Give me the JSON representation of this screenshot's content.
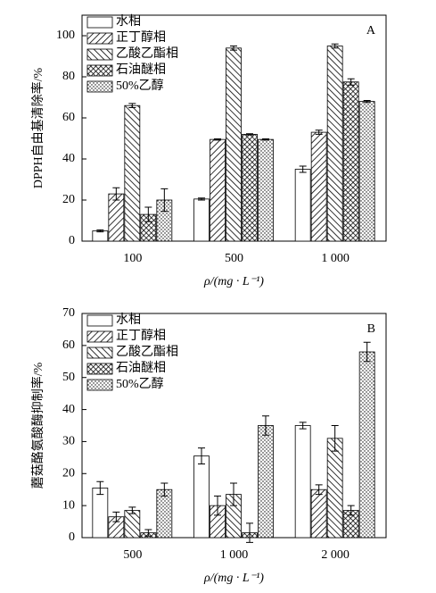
{
  "chart_data": [
    {
      "type": "bar",
      "annotation": "A",
      "ylabel": "DPPH自由基清除率/%",
      "xlabel": "ρ/(mg · L⁻¹)",
      "categories": [
        "100",
        "500",
        "1 000"
      ],
      "ylim": [
        0,
        110
      ],
      "yticks": [
        0,
        20,
        40,
        60,
        80,
        100
      ],
      "legend": "top-left",
      "series": [
        {
          "name": "水相",
          "color": "#ffffff",
          "pattern": "none",
          "values": [
            5,
            20.5,
            35
          ],
          "errors": [
            0.5,
            0.5,
            1.5
          ]
        },
        {
          "name": "正丁醇相",
          "color": "#ffffff",
          "pattern": "forward-hatch",
          "values": [
            23,
            49.5,
            53
          ],
          "errors": [
            3,
            0.3,
            1
          ]
        },
        {
          "name": "乙酸乙酯相",
          "color": "#ffffff",
          "pattern": "back-hatch",
          "values": [
            66,
            94,
            95
          ],
          "errors": [
            1,
            1,
            1
          ]
        },
        {
          "name": "石油醚相",
          "color": "#ffffff",
          "pattern": "cross-hatch",
          "values": [
            13,
            52,
            77.5
          ],
          "errors": [
            3.5,
            0.3,
            1.5
          ]
        },
        {
          "name": "50%乙醇",
          "color": "#ffffff",
          "pattern": "dots",
          "values": [
            20,
            49.5,
            68
          ],
          "errors": [
            5.5,
            0.3,
            0.5
          ]
        }
      ]
    },
    {
      "type": "bar",
      "annotation": "B",
      "ylabel": "蘑菇酪氨酸酶抑制率/%",
      "xlabel": "ρ/(mg · L⁻¹)",
      "categories": [
        "500",
        "1 000",
        "2 000"
      ],
      "ylim": [
        0,
        70
      ],
      "yticks": [
        0,
        10,
        20,
        30,
        40,
        50,
        60,
        70
      ],
      "legend": "top-left",
      "series": [
        {
          "name": "水相",
          "color": "#ffffff",
          "pattern": "none",
          "values": [
            15.5,
            25.5,
            35
          ],
          "errors": [
            2,
            2.5,
            1
          ]
        },
        {
          "name": "正丁醇相",
          "color": "#ffffff",
          "pattern": "forward-hatch",
          "values": [
            6.5,
            10,
            15
          ],
          "errors": [
            1.5,
            3,
            1.5
          ]
        },
        {
          "name": "乙酸乙酯相",
          "color": "#ffffff",
          "pattern": "back-hatch",
          "values": [
            8.5,
            13.5,
            31
          ],
          "errors": [
            1,
            3.5,
            4
          ]
        },
        {
          "name": "石油醚相",
          "color": "#ffffff",
          "pattern": "cross-hatch",
          "values": [
            1.5,
            1.5,
            8.5
          ],
          "errors": [
            1,
            3,
            1.5
          ]
        },
        {
          "name": "50%乙醇",
          "color": "#ffffff",
          "pattern": "dots",
          "values": [
            15,
            35,
            58
          ],
          "errors": [
            2,
            3,
            3
          ]
        }
      ]
    }
  ]
}
